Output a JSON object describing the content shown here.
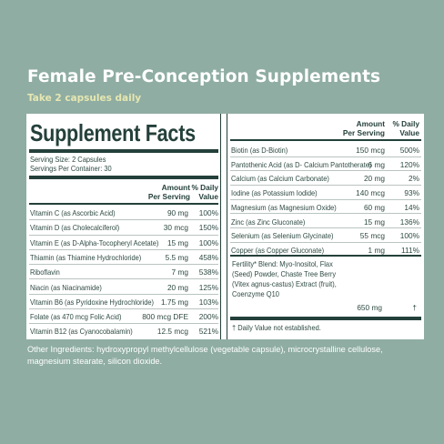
{
  "title": "Female Pre-Conception Supplements",
  "subtitle": "Take 2 capsules daily",
  "facts": {
    "heading": "Supplement Facts",
    "serving_size": "Serving Size: 2 Capsules",
    "servings_per_container": "Servings Per Container: 30",
    "col_amount_1": "Amount",
    "col_amount_2": "Per Serving",
    "col_dv_1": "% Daily",
    "col_dv_2": "Value",
    "left_rows": [
      {
        "name": "Vitamin C (as Ascorbic Acid)",
        "amount": "90 mg",
        "dv": "100%"
      },
      {
        "name": "Vitamin D (as Cholecalciferol)",
        "amount": "30 mcg",
        "dv": "150%"
      },
      {
        "name": "Vitamin E (as D-Alpha-Tocopheryl Acetate)",
        "amount": "15 mg",
        "dv": "100%"
      },
      {
        "name": "Thiamin (as Thiamine Hydrochloride)",
        "amount": "5.5 mg",
        "dv": "458%"
      },
      {
        "name": "Riboflavin",
        "amount": "7 mg",
        "dv": "538%"
      },
      {
        "name": "Niacin (as Niacinamide)",
        "amount": "20 mg",
        "dv": "125%"
      },
      {
        "name": "Vitamin B6 (as Pyridoxine Hydrochloride)",
        "amount": "1.75 mg",
        "dv": "103%"
      },
      {
        "name": "Folate (as 470 mcg Folic Acid)",
        "amount": "800 mcg DFE",
        "dv": "200%"
      },
      {
        "name": "Vitamin B12 (as Cyanocobalamin)",
        "amount": "12.5 mcg",
        "dv": "521%"
      }
    ],
    "right_rows": [
      {
        "name": "Biotin (as D-Biotin)",
        "amount": "150 mcg",
        "dv": "500%"
      },
      {
        "name": "Pantothenic Acid (as D- Calcium Pantotherate)",
        "amount": "6 mg",
        "dv": "120%"
      },
      {
        "name": "Calcium (as Calcium Carbonate)",
        "amount": "20 mg",
        "dv": "2%"
      },
      {
        "name": "Iodine (as Potassium Iodide)",
        "amount": "140 mcg",
        "dv": "93%"
      },
      {
        "name": "Magnesium (as Magnesium Oxide)",
        "amount": "60 mg",
        "dv": "14%"
      },
      {
        "name": "Zinc (as Zinc Gluconate)",
        "amount": "15 mg",
        "dv": "136%"
      },
      {
        "name": "Selenium (as Selenium Glycinate)",
        "amount": "55 mcg",
        "dv": "100%"
      },
      {
        "name": "Copper (as Copper Gluconate)",
        "amount": "1 mg",
        "dv": "111%"
      }
    ],
    "blend_line_1": "Fertility* Blend: Myo-Inositol, Flax",
    "blend_line_2": "(Seed) Powder, Chaste Tree Berry",
    "blend_line_3": "(Vitex agnus-castus) Extract (fruit),",
    "blend_line_4": "Coenzyme Q10",
    "blend_amount": "650 mg",
    "blend_dv": "†",
    "footnote": "† Daily Value not established."
  },
  "other_ingredients": "Other Ingredients: hydroxypropyl methylcellulose (vegetable capsule), microcrystalline cellulose, magnesium stearate, silicon dioxide."
}
